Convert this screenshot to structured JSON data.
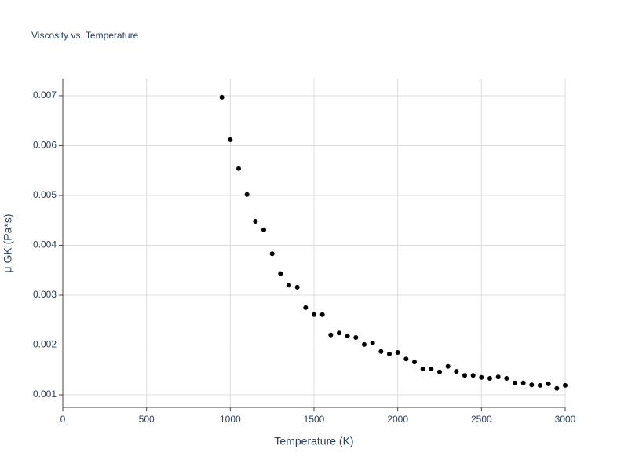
{
  "chart_data": {
    "type": "scatter",
    "title": "Viscosity vs. Temperature",
    "x_label": "Temperature (K)",
    "y_label": "μ GK (Pa*s)",
    "x": [
      950,
      1000,
      1050,
      1100,
      1150,
      1200,
      1250,
      1300,
      1350,
      1400,
      1450,
      1500,
      1550,
      1600,
      1650,
      1700,
      1750,
      1800,
      1850,
      1900,
      1950,
      2000,
      2050,
      2100,
      2150,
      2200,
      2250,
      2300,
      2350,
      2400,
      2450,
      2500,
      2550,
      2600,
      2650,
      2700,
      2750,
      2800,
      2850,
      2900,
      2950,
      3000
    ],
    "values": [
      0.00697,
      0.00612,
      0.00554,
      0.00502,
      0.00448,
      0.00431,
      0.00383,
      0.00343,
      0.0032,
      0.00316,
      0.00275,
      0.00261,
      0.00261,
      0.0022,
      0.00224,
      0.00218,
      0.00215,
      0.00201,
      0.00204,
      0.00187,
      0.00182,
      0.00185,
      0.00172,
      0.00166,
      0.00152,
      0.00152,
      0.00146,
      0.00157,
      0.00147,
      0.00139,
      0.00139,
      0.00135,
      0.00133,
      0.00136,
      0.00133,
      0.00124,
      0.00124,
      0.0012,
      0.00119,
      0.00122,
      0.00113,
      0.00119
    ],
    "color": "#000000",
    "xlim": [
      0,
      3000
    ],
    "xticks": [
      0,
      500,
      1000,
      1500,
      2000,
      2500,
      3000
    ],
    "ylim": [
      0.000748,
      0.007346
    ],
    "yticks": [
      0.001,
      0.002,
      0.003,
      0.004,
      0.005,
      0.006,
      0.007
    ],
    "grid": true
  }
}
